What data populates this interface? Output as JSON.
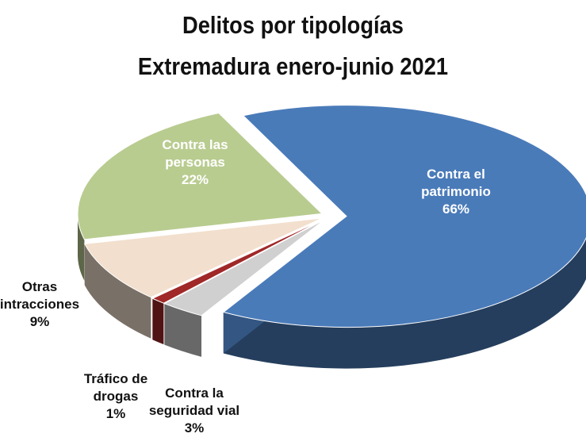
{
  "chart_data": {
    "type": "pie3d",
    "title": "Delitos por tipologías",
    "subtitle": "Extremadura enero-junio 2021",
    "categories": [
      "Contra el patrimonio",
      "Contra la seguridad vial",
      "Tráfico de drogas",
      "Otras intracciones",
      "Contra las personas"
    ],
    "values": [
      66,
      3,
      1,
      9,
      22
    ],
    "value_labels": [
      "66%",
      "3%",
      "1%",
      "9%",
      "22%"
    ],
    "colors": [
      "#4a7bb9",
      "#d0d0d0",
      "#a02828",
      "#f2dfcd",
      "#b9cc90"
    ]
  }
}
